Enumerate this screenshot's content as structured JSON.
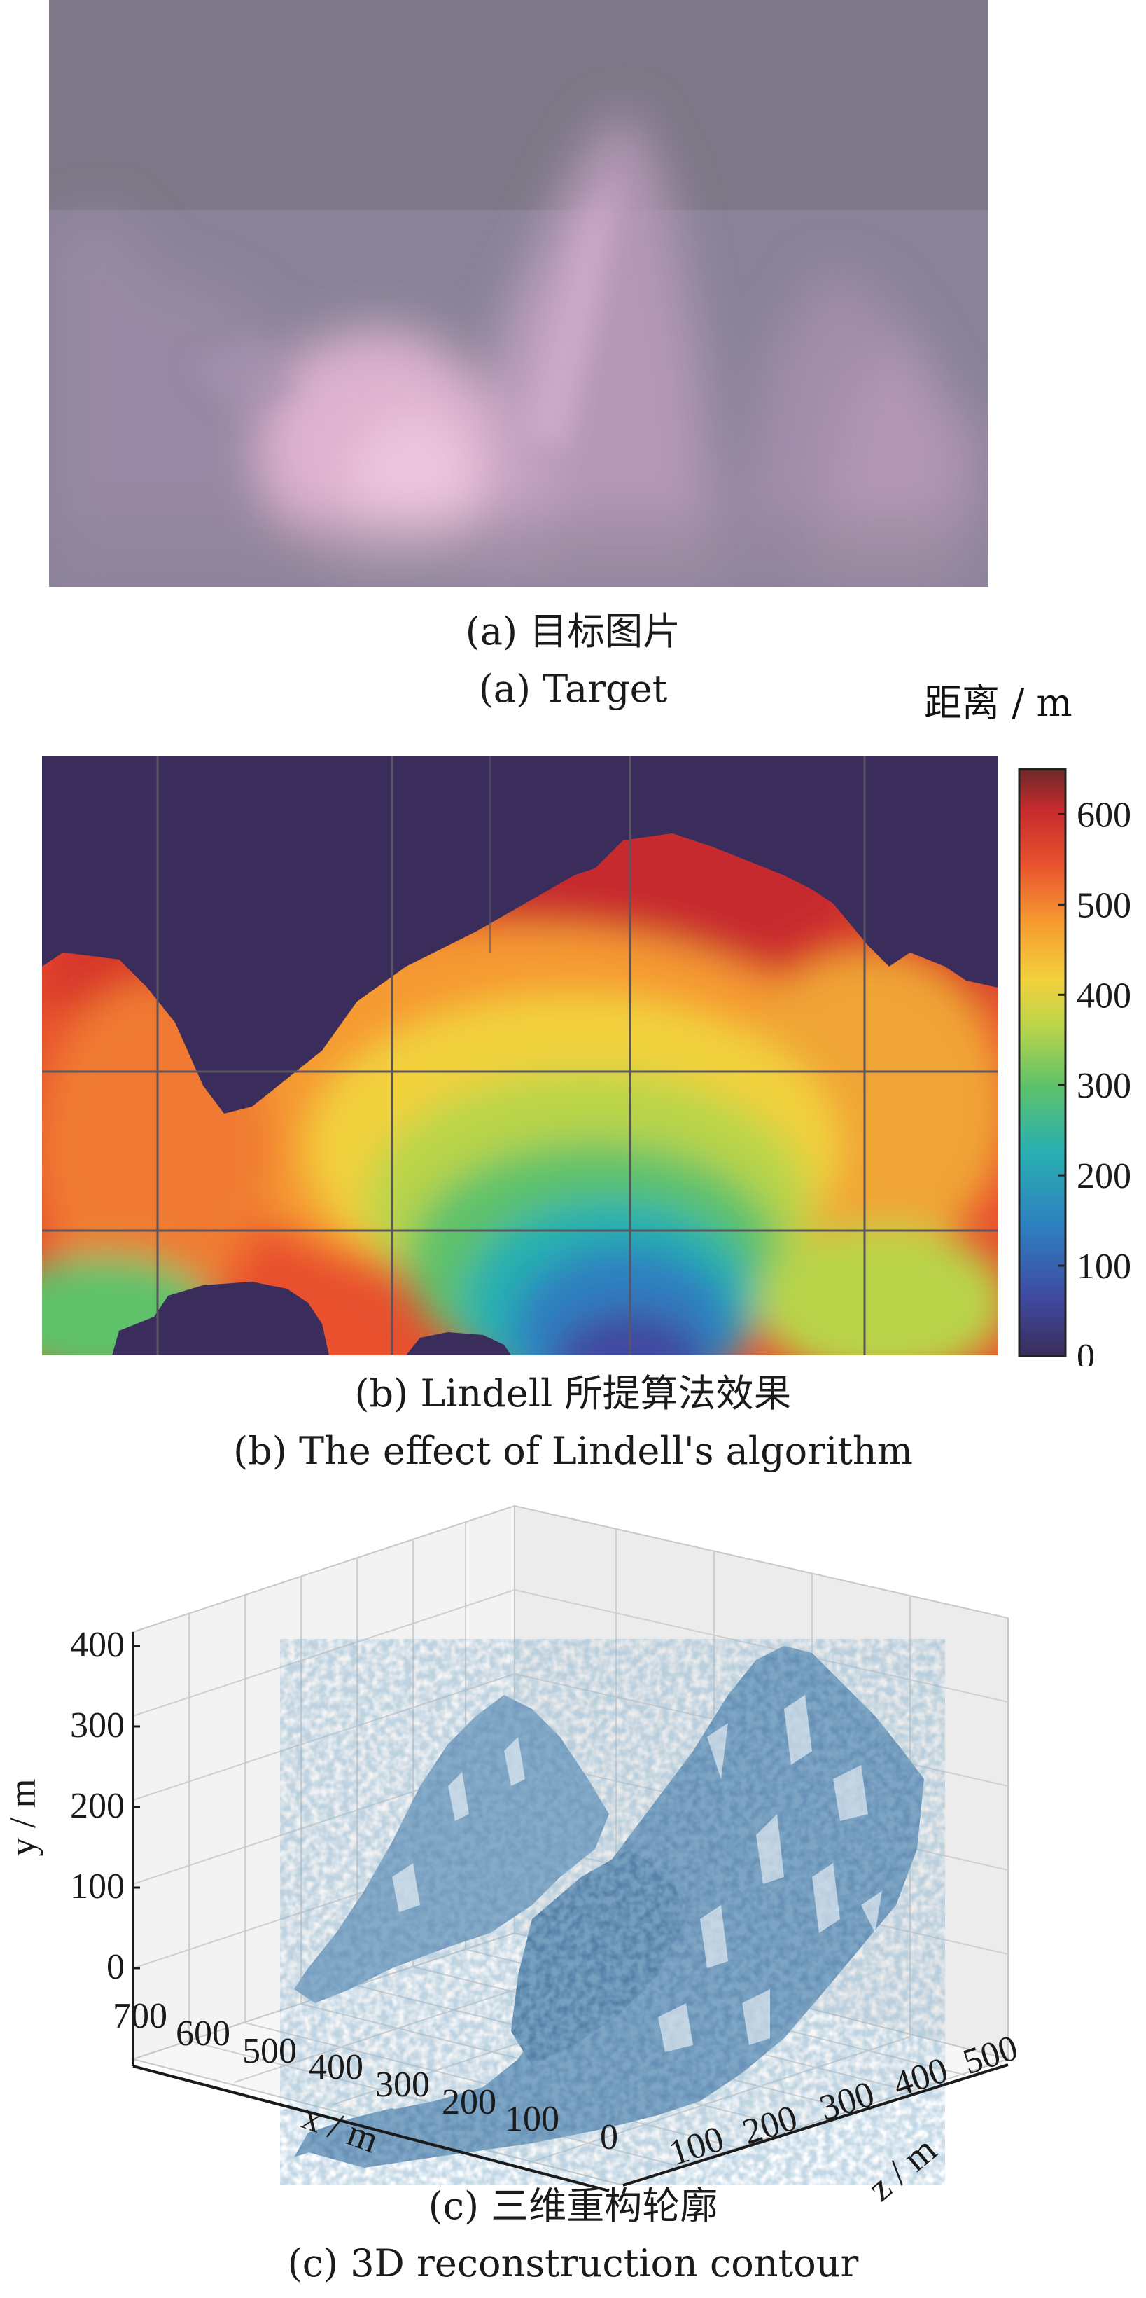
{
  "panel_a": {
    "caption_zh": "(a) 目标图片",
    "caption_en": "(a) Target"
  },
  "panel_b": {
    "caption_zh": "(b) Lindell 所提算法效果",
    "caption_en": "(b) The effect of Lindell's algorithm",
    "colorbar": {
      "label": "距离 / m",
      "ticks": [
        "0",
        "100",
        "200",
        "300",
        "400",
        "500",
        "600"
      ],
      "range": [
        0,
        650
      ],
      "colors": [
        "#3a2d5c",
        "#3f4aa0",
        "#2e7fc0",
        "#28b0b0",
        "#5ec26a",
        "#b9d44a",
        "#f2d23c",
        "#f59a30",
        "#e8502e",
        "#c72b2e",
        "#6b2a28"
      ]
    }
  },
  "panel_c": {
    "caption_zh": "(c) 三维重构轮廓",
    "caption_en": "(c) 3D reconstruction contour",
    "y_label": "y / m",
    "x_label": "x / m",
    "z_label": "z / m",
    "y_ticks": [
      "400",
      "300",
      "200",
      "100",
      "0"
    ],
    "x_ticks": [
      "700",
      "600",
      "500",
      "400",
      "300",
      "200",
      "100",
      "0"
    ],
    "z_ticks": [
      "100",
      "200",
      "300",
      "400",
      "500"
    ],
    "point_color": "#4a7aa4"
  }
}
